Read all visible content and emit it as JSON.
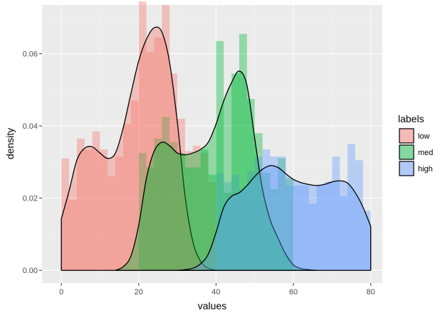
{
  "chart_data": {
    "type": "histogram",
    "title": "",
    "xlabel": "values",
    "ylabel": "density",
    "xlim": [
      -5,
      83
    ],
    "ylim": [
      -0.0035,
      0.0735
    ],
    "x_ticks": [
      0,
      20,
      40,
      60,
      80
    ],
    "x_tick_labels": [
      "0",
      "20",
      "40",
      "60",
      "80"
    ],
    "y_ticks": [
      0.0,
      0.02,
      0.04,
      0.06
    ],
    "y_tick_labels": [
      "0.00",
      "0.02",
      "0.04",
      "0.06"
    ],
    "grid": true,
    "legend": {
      "title": "labels",
      "position": "right"
    },
    "series": [
      {
        "name": "low",
        "color": "#F8766D",
        "bins": [
          {
            "x0": 0,
            "x1": 2,
            "y": 0.031
          },
          {
            "x0": 2,
            "x1": 4,
            "y": 0.0195
          },
          {
            "x0": 4,
            "x1": 6,
            "y": 0.0365
          },
          {
            "x0": 6,
            "x1": 8,
            "y": 0.0335
          },
          {
            "x0": 8,
            "x1": 10,
            "y": 0.0385
          },
          {
            "x0": 10,
            "x1": 12,
            "y": 0.0335
          },
          {
            "x0": 12,
            "x1": 14,
            "y": 0.026
          },
          {
            "x0": 14,
            "x1": 16,
            "y": 0.0315
          },
          {
            "x0": 16,
            "x1": 18,
            "y": 0.0405
          },
          {
            "x0": 18,
            "x1": 20,
            "y": 0.047
          },
          {
            "x0": 20,
            "x1": 22,
            "y": 0.0745
          },
          {
            "x0": 22,
            "x1": 24,
            "y": 0.0605
          },
          {
            "x0": 24,
            "x1": 26,
            "y": 0.0645
          },
          {
            "x0": 26,
            "x1": 28,
            "y": 0.0735
          },
          {
            "x0": 28,
            "x1": 30,
            "y": 0.0545
          },
          {
            "x0": 30,
            "x1": 32,
            "y": 0.042
          },
          {
            "x0": 32,
            "x1": 34,
            "y": 0.033
          },
          {
            "x0": 34,
            "x1": 36,
            "y": 0.0345
          },
          {
            "x0": 36,
            "x1": 38,
            "y": 0.0325
          },
          {
            "x0": 38,
            "x1": 40,
            "y": 0.0245
          }
        ],
        "density": {
          "x": [
            0,
            2,
            4,
            6,
            8,
            10,
            12,
            14,
            16,
            18,
            20,
            22,
            24,
            26,
            28,
            30,
            32,
            34,
            36,
            38,
            40
          ],
          "y": [
            0.0143,
            0.022,
            0.0305,
            0.0338,
            0.0342,
            0.0325,
            0.031,
            0.0325,
            0.0395,
            0.049,
            0.058,
            0.064,
            0.0672,
            0.066,
            0.0575,
            0.041,
            0.0205,
            0.008,
            0.0025,
            0.0006,
            0
          ]
        }
      },
      {
        "name": "med",
        "color": "#00BA38",
        "bins": [
          {
            "x0": 20,
            "x1": 22,
            "y": 0.0325
          },
          {
            "x0": 22,
            "x1": 24,
            "y": 0.0285
          },
          {
            "x0": 24,
            "x1": 26,
            "y": 0.0365
          },
          {
            "x0": 26,
            "x1": 28,
            "y": 0.0425
          },
          {
            "x0": 28,
            "x1": 30,
            "y": 0.0355
          },
          {
            "x0": 30,
            "x1": 32,
            "y": 0.0325
          },
          {
            "x0": 32,
            "x1": 34,
            "y": 0.0285
          },
          {
            "x0": 34,
            "x1": 36,
            "y": 0.0285
          },
          {
            "x0": 36,
            "x1": 38,
            "y": 0.0335
          },
          {
            "x0": 38,
            "x1": 40,
            "y": 0.0265
          },
          {
            "x0": 40,
            "x1": 42,
            "y": 0.0635
          },
          {
            "x0": 42,
            "x1": 44,
            "y": 0.0215
          },
          {
            "x0": 44,
            "x1": 46,
            "y": 0.0545
          },
          {
            "x0": 46,
            "x1": 48,
            "y": 0.0655
          },
          {
            "x0": 48,
            "x1": 50,
            "y": 0.0475
          },
          {
            "x0": 50,
            "x1": 52,
            "y": 0.038
          },
          {
            "x0": 52,
            "x1": 54,
            "y": 0.027
          },
          {
            "x0": 54,
            "x1": 56,
            "y": 0.0225
          },
          {
            "x0": 56,
            "x1": 58,
            "y": 0.031
          },
          {
            "x0": 58,
            "x1": 60,
            "y": 0.0255
          }
        ],
        "density": {
          "x": [
            14,
            16,
            18,
            20,
            22,
            24,
            26,
            28,
            30,
            32,
            34,
            36,
            38,
            40,
            42,
            44,
            46,
            48,
            50,
            52,
            54,
            56,
            58,
            60,
            62,
            64,
            66
          ],
          "y": [
            0,
            0.001,
            0.004,
            0.0125,
            0.0255,
            0.033,
            0.0355,
            0.0345,
            0.0325,
            0.032,
            0.0325,
            0.0335,
            0.0355,
            0.0405,
            0.047,
            0.052,
            0.0552,
            0.0512,
            0.0365,
            0.0225,
            0.014,
            0.009,
            0.0045,
            0.0015,
            0.0005,
            0.0002,
            0
          ]
        }
      },
      {
        "name": "high",
        "color": "#619CFF",
        "bins": [
          {
            "x0": 40,
            "x1": 42,
            "y": 0.027
          },
          {
            "x0": 42,
            "x1": 44,
            "y": 0.0245
          },
          {
            "x0": 44,
            "x1": 46,
            "y": 0.0265
          },
          {
            "x0": 46,
            "x1": 48,
            "y": 0.0225
          },
          {
            "x0": 48,
            "x1": 50,
            "y": 0.0275
          },
          {
            "x0": 50,
            "x1": 52,
            "y": 0.0315
          },
          {
            "x0": 52,
            "x1": 54,
            "y": 0.0335
          },
          {
            "x0": 54,
            "x1": 56,
            "y": 0.0315
          },
          {
            "x0": 56,
            "x1": 58,
            "y": 0.0315
          },
          {
            "x0": 58,
            "x1": 60,
            "y": 0.0235
          },
          {
            "x0": 60,
            "x1": 62,
            "y": 0.0235
          },
          {
            "x0": 62,
            "x1": 64,
            "y": 0.0235
          },
          {
            "x0": 64,
            "x1": 66,
            "y": 0.0185
          },
          {
            "x0": 66,
            "x1": 68,
            "y": 0.0235
          },
          {
            "x0": 68,
            "x1": 70,
            "y": 0.0245
          },
          {
            "x0": 70,
            "x1": 72,
            "y": 0.0315
          },
          {
            "x0": 72,
            "x1": 74,
            "y": 0.0205
          },
          {
            "x0": 74,
            "x1": 76,
            "y": 0.035
          },
          {
            "x0": 76,
            "x1": 78,
            "y": 0.0305
          },
          {
            "x0": 78,
            "x1": 80,
            "y": 0.0165
          }
        ],
        "density": {
          "x": [
            30,
            32,
            34,
            36,
            38,
            40,
            42,
            44,
            46,
            48,
            50,
            52,
            54,
            56,
            58,
            60,
            62,
            64,
            66,
            68,
            70,
            72,
            74,
            76,
            78,
            80
          ],
          "y": [
            0,
            0.0002,
            0.0006,
            0.0018,
            0.0045,
            0.0105,
            0.0175,
            0.0205,
            0.0215,
            0.0235,
            0.026,
            0.028,
            0.029,
            0.0285,
            0.0268,
            0.0252,
            0.0243,
            0.0238,
            0.0235,
            0.0238,
            0.0245,
            0.0248,
            0.0242,
            0.0215,
            0.0175,
            0.0122
          ]
        }
      }
    ]
  }
}
